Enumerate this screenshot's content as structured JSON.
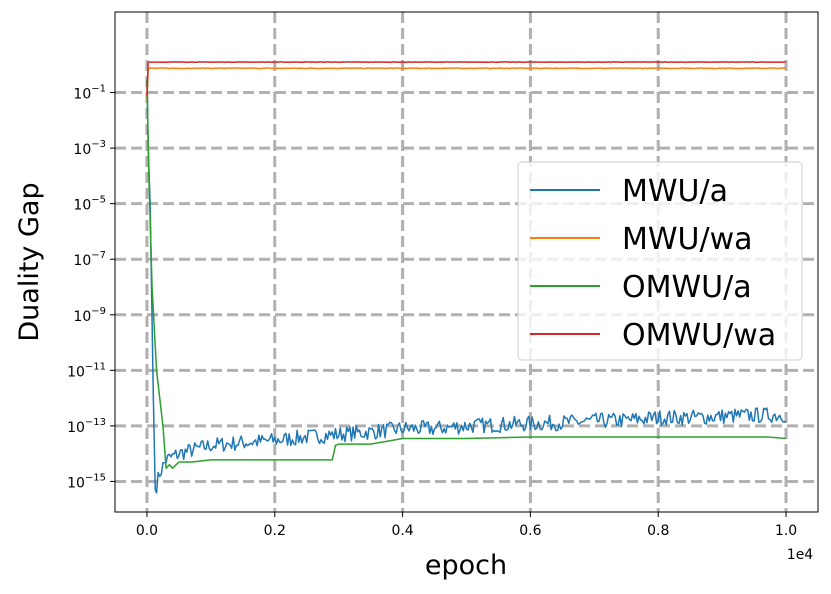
{
  "chart_data": {
    "type": "line",
    "xlabel": "epoch",
    "ylabel": "Duality Gap",
    "x_offset_label": "1e4",
    "xlim": [
      -0.05,
      1.05
    ],
    "ylim_log10": [
      -16.1,
      1.9
    ],
    "yscale": "log",
    "grid": true,
    "legend_position": "center-right",
    "x_ticks": [
      0.0,
      0.2,
      0.4,
      0.6,
      0.8,
      1.0
    ],
    "x_tick_labels": [
      "0.0",
      "0.2",
      "0.4",
      "0.6",
      "0.8",
      "1.0"
    ],
    "y_ticks_exp": [
      -15,
      -13,
      -11,
      -9,
      -7,
      -5,
      -3,
      -1
    ],
    "y_tick_labels": [
      {
        "base": "10",
        "exp": "−15"
      },
      {
        "base": "10",
        "exp": "−13"
      },
      {
        "base": "10",
        "exp": "−11"
      },
      {
        "base": "10",
        "exp": "−9"
      },
      {
        "base": "10",
        "exp": "−7"
      },
      {
        "base": "10",
        "exp": "−5"
      },
      {
        "base": "10",
        "exp": "−3"
      },
      {
        "base": "10",
        "exp": "−1"
      }
    ],
    "series": [
      {
        "name": "MWU/a",
        "color": "#1f77b4",
        "x": [
          0.0,
          0.002,
          0.005,
          0.01,
          0.013,
          0.02,
          0.03,
          0.05,
          0.1,
          0.15,
          0.2,
          0.25,
          0.3,
          0.35,
          0.4,
          0.45,
          0.5,
          0.55,
          0.6,
          0.65,
          0.7,
          0.75,
          0.8,
          0.85,
          0.9,
          0.95,
          1.0
        ],
        "y": [
          0.3,
          0.001,
          1e-05,
          1e-12,
          5e-16,
          2e-15,
          6e-15,
          1e-14,
          2e-14,
          2.5e-14,
          3e-14,
          4e-14,
          5e-14,
          6e-14,
          8e-14,
          8e-14,
          1e-13,
          1.1e-13,
          1.2e-13,
          1.3e-13,
          1.5e-13,
          1.6e-13,
          2e-13,
          2e-13,
          2.2e-13,
          2.4e-13,
          2.5e-13
        ]
      },
      {
        "name": "MWU/wa",
        "color": "#ff7f0e",
        "x": [
          0.0,
          0.002,
          1.0
        ],
        "y": [
          0.05,
          0.75,
          0.75
        ]
      },
      {
        "name": "OMWU/a",
        "color": "#2ca02c",
        "x": [
          0.0,
          0.003,
          0.008,
          0.015,
          0.025,
          0.03,
          0.035,
          0.04,
          0.05,
          0.07,
          0.1,
          0.15,
          0.2,
          0.25,
          0.29,
          0.295,
          0.3,
          0.35,
          0.4,
          0.45,
          0.5,
          0.6,
          0.7,
          0.8,
          0.9,
          0.97,
          1.0
        ],
        "y": [
          0.3,
          0.0001,
          1e-08,
          1e-11,
          1e-13,
          3e-15,
          4e-15,
          3e-15,
          5e-15,
          5e-15,
          6e-15,
          6e-15,
          6e-15,
          6e-15,
          6e-15,
          2e-14,
          2.2e-14,
          2.2e-14,
          3.5e-14,
          3.5e-14,
          3.5e-14,
          4e-14,
          4e-14,
          4e-14,
          4e-14,
          4e-14,
          3.5e-14
        ]
      },
      {
        "name": "OMWU/wa",
        "color": "#d62728",
        "x": [
          0.0,
          0.002,
          1.0
        ],
        "y": [
          0.08,
          1.25,
          1.25
        ]
      }
    ]
  }
}
